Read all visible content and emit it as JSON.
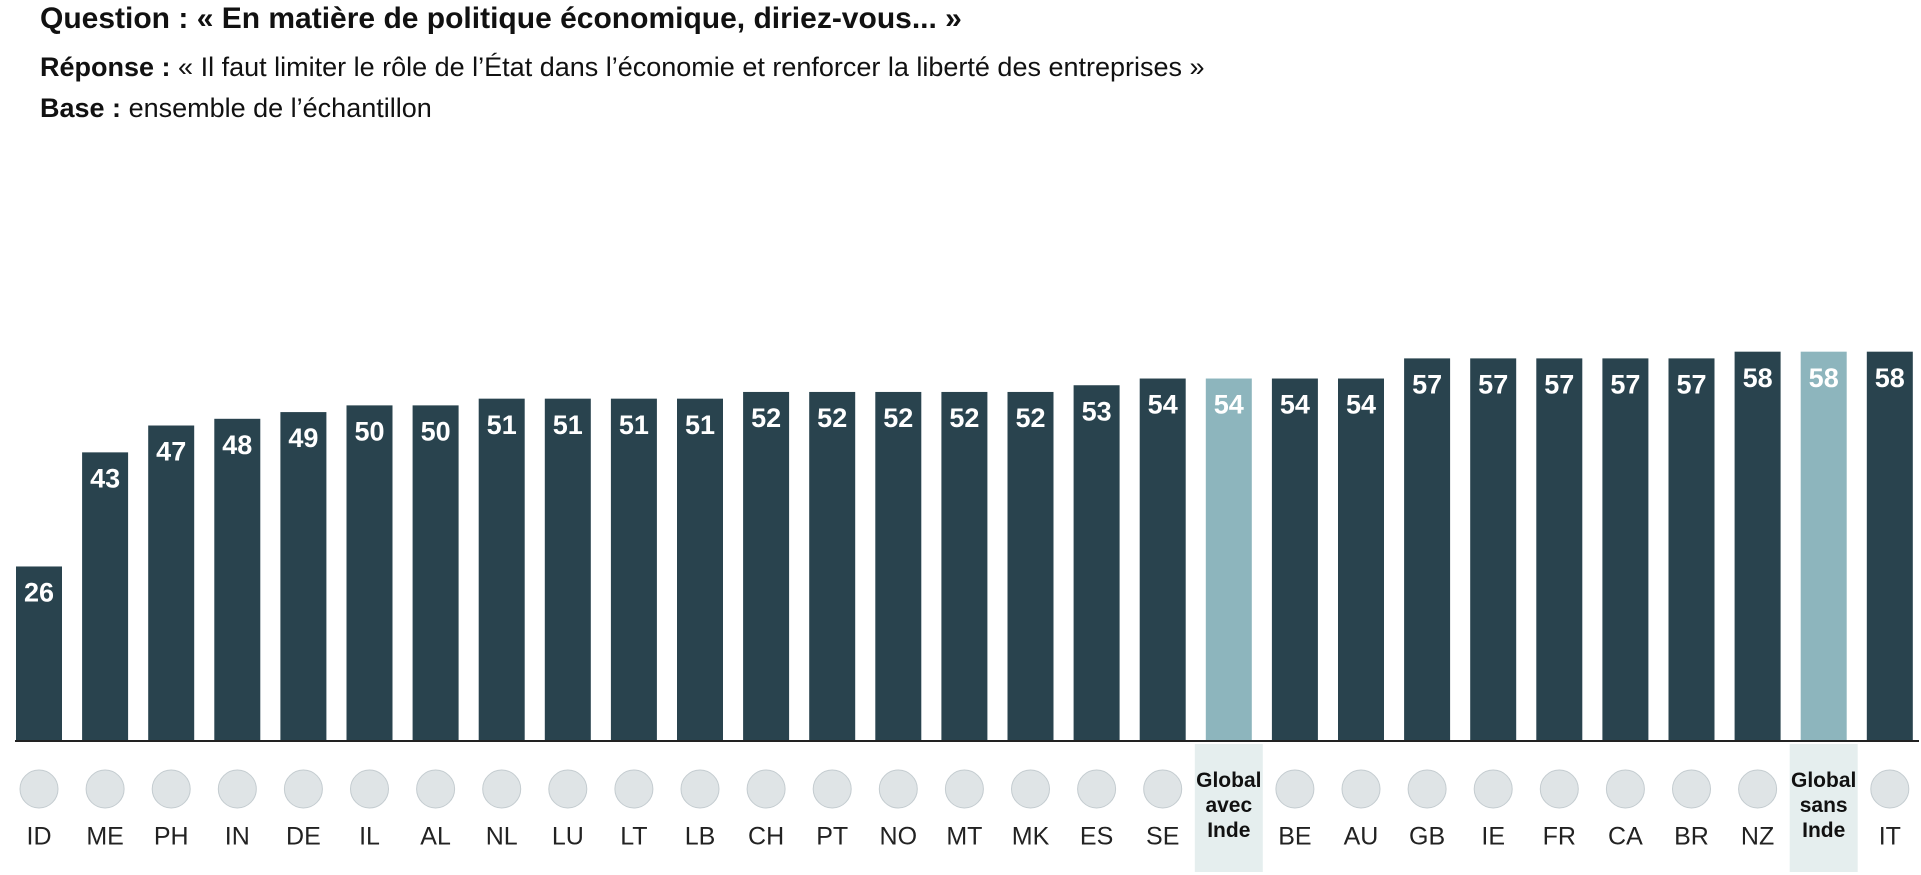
{
  "header": {
    "question": {
      "label": "Question :",
      "text": "« En matière de politique économique, diriez-vous...  »"
    },
    "response": {
      "label": "Réponse :",
      "text": "« Il faut limiter le rôle de l’État dans l’économie et renforcer la liberté des entreprises »"
    },
    "base": {
      "label": "Base :",
      "text": "ensemble de l’échantillon"
    }
  },
  "chart_data": {
    "type": "bar",
    "categories": [
      "ID",
      "ME",
      "PH",
      "IN",
      "DE",
      "IL",
      "AL",
      "NL",
      "LU",
      "LT",
      "LB",
      "CH",
      "PT",
      "NO",
      "MT",
      "MK",
      "ES",
      "SE",
      "Global avec Inde",
      "BE",
      "AU",
      "GB",
      "IE",
      "FR",
      "CA",
      "BR",
      "NZ",
      "Global sans Inde",
      "IT"
    ],
    "values": [
      26,
      43,
      47,
      48,
      49,
      50,
      50,
      51,
      51,
      51,
      51,
      52,
      52,
      52,
      52,
      52,
      53,
      54,
      54,
      54,
      54,
      57,
      57,
      57,
      57,
      57,
      58,
      58,
      58
    ],
    "colors": [
      "#29434e",
      "#29434e",
      "#29434e",
      "#29434e",
      "#29434e",
      "#29434e",
      "#29434e",
      "#29434e",
      "#29434e",
      "#29434e",
      "#29434e",
      "#29434e",
      "#29434e",
      "#29434e",
      "#29434e",
      "#29434e",
      "#29434e",
      "#29434e",
      "#8db5bd",
      "#29434e",
      "#29434e",
      "#29434e",
      "#29434e",
      "#29434e",
      "#29434e",
      "#29434e",
      "#29434e",
      "#8db5bd",
      "#29434e"
    ],
    "ylim": [
      0,
      80
    ]
  }
}
